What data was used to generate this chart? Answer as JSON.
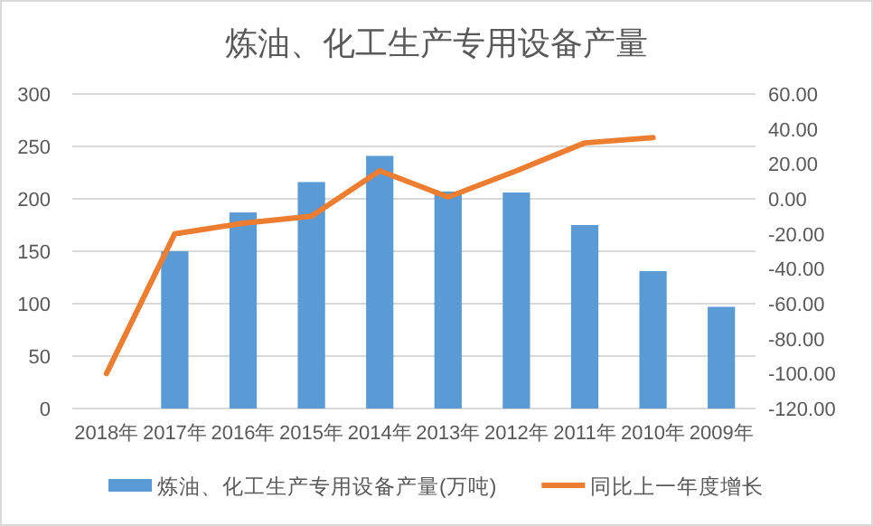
{
  "chart_data": {
    "type": "bar",
    "title": "炼油、化工生产专用设备产量",
    "categories": [
      "2018年",
      "2017年",
      "2016年",
      "2015年",
      "2014年",
      "2013年",
      "2012年",
      "2011年",
      "2010年",
      "2009年"
    ],
    "series": [
      {
        "name": "炼油、化工生产专用设备产量(万吨)",
        "color": "#5b9bd5",
        "values": [
          0,
          150,
          187,
          216,
          241,
          207,
          206,
          175,
          131,
          97
        ]
      },
      {
        "name": "同比上一年度增长",
        "type": "line",
        "axis": "y2",
        "color": "#ed7d31",
        "values": [
          -100,
          -20,
          -14,
          -10,
          16,
          1,
          16,
          32,
          35,
          null
        ]
      }
    ],
    "ylim": [
      0,
      300
    ],
    "yticks": [
      0,
      50,
      100,
      150,
      200,
      250,
      300
    ],
    "y2lim": [
      -120,
      60
    ],
    "y2ticks": [
      {
        "value": -120,
        "label": "-120.00"
      },
      {
        "value": -100,
        "label": "-100.00"
      },
      {
        "value": -80,
        "label": "-80.00"
      },
      {
        "value": -60,
        "label": "-60.00"
      },
      {
        "value": -40,
        "label": "-40.00"
      },
      {
        "value": -20,
        "label": "-20.00"
      },
      {
        "value": 0,
        "label": "0.00"
      },
      {
        "value": 20,
        "label": "20.00"
      },
      {
        "value": 40,
        "label": "40.00"
      },
      {
        "value": 60,
        "label": "60.00"
      }
    ],
    "grid": "y",
    "legend": "bottom",
    "marker": "none",
    "line_style": "solid"
  }
}
